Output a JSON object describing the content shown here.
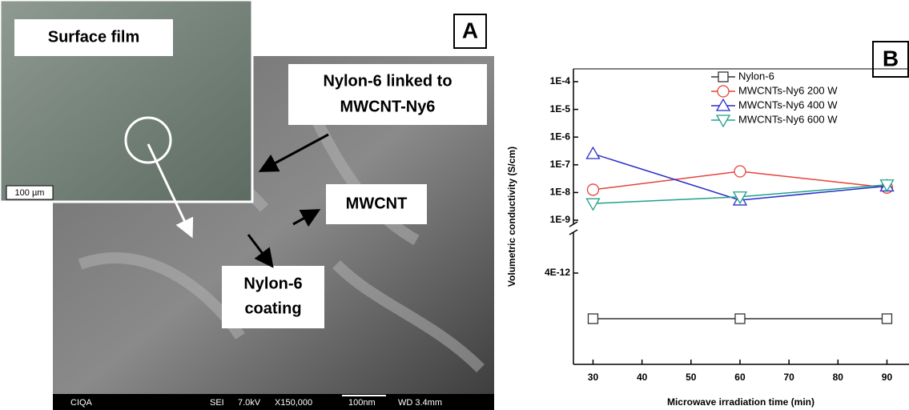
{
  "panel_a": {
    "label": "A",
    "inset_title": "Surface film",
    "inset_scale": "100 µm",
    "annotations": [
      "Nylon-6 linked to",
      "MWCNT-Ny6",
      "MWCNT",
      "Nylon-6",
      "coating"
    ],
    "info_bar": [
      "CIQA",
      "SEI",
      "7.0kV",
      "X150,000",
      "100nm",
      "WD 3.4mm"
    ]
  },
  "chart_data": {
    "type": "line",
    "panel_label": "B",
    "x_label": "Microwave irradiation time (min)",
    "y_label": "Volumetric conductivity (S/cm)",
    "x": [
      30,
      60,
      90
    ],
    "xlim": [
      26,
      94.5
    ],
    "xticks": [
      30,
      40,
      50,
      60,
      70,
      80,
      90
    ],
    "ylim": [
      1e-09,
      0.0001
    ],
    "log_y": true,
    "yticks": [
      {
        "value": 0.0001,
        "label": "1E-4"
      },
      {
        "value": 1e-05,
        "label": "1E-5"
      },
      {
        "value": 1e-06,
        "label": "1E-6"
      },
      {
        "value": 1e-07,
        "label": "1E-7"
      },
      {
        "value": 1e-08,
        "label": "1E-8"
      },
      {
        "value": 1e-09,
        "label": "1E-9"
      }
    ],
    "ylim_lower": [
      0,
      6e-12
    ],
    "yticks_lower": [
      {
        "value": 4e-12,
        "label": "4E-12"
      }
    ],
    "legend": "upper right",
    "series": [
      {
        "name": "Nylon-6",
        "color": "#333333",
        "marker": "square",
        "axis": "lower",
        "values": [
          2e-12,
          2e-12,
          2e-12
        ]
      },
      {
        "name": "MWCNTs-Ny6 200 W",
        "color": "#e8413c",
        "marker": "circle",
        "values": [
          1.26e-08,
          5.8e-08,
          1.5e-08
        ]
      },
      {
        "name": "MWCNTs-Ny6 400 W",
        "color": "#2a2fc8",
        "marker": "triangle-up",
        "values": [
          2.5e-07,
          5.3e-09,
          1.7e-08
        ]
      },
      {
        "name": "MWCNTs-Ny6 600 W",
        "color": "#21a08a",
        "marker": "triangle-down",
        "values": [
          4e-09,
          7e-09,
          1.9e-08
        ]
      }
    ]
  }
}
